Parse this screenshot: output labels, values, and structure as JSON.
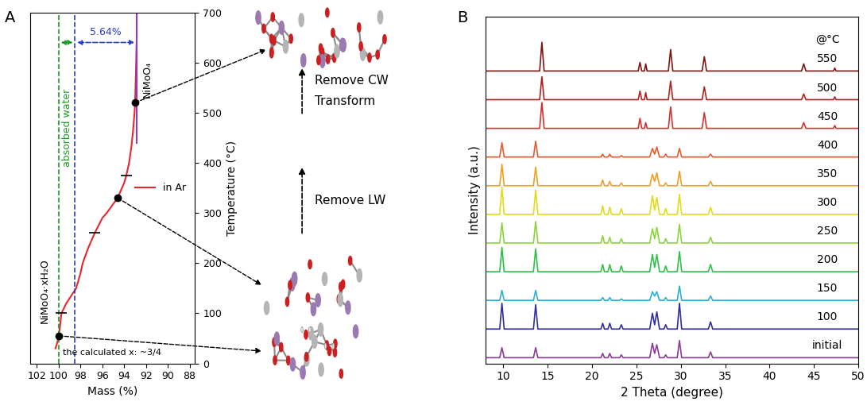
{
  "chart_data": [
    {
      "type": "line",
      "panel": "A",
      "x_label": "Mass (%)",
      "y_label": "Temperature (°C)",
      "xlim": [
        102.6,
        87.5
      ],
      "xticks": [
        102,
        100,
        98,
        96,
        94,
        92,
        90,
        88
      ],
      "ylim": [
        0,
        700
      ],
      "yticks": [
        0,
        100,
        200,
        300,
        400,
        500,
        600,
        700
      ],
      "legend": "center right",
      "series": [
        {
          "name": "in Ar",
          "color": "#e8262b",
          "x": [
            100.3,
            100.15,
            100.0,
            99.9,
            99.75,
            99.3,
            98.4,
            98.0,
            97.8,
            97.3,
            96.7,
            96.0,
            95.6,
            94.6,
            94.0,
            93.8,
            93.55,
            93.35,
            93.2,
            93.05,
            93.0,
            92.95,
            92.9,
            92.85,
            92.85
          ],
          "values": [
            30,
            40,
            55,
            70,
            100,
            120,
            150,
            180,
            200,
            230,
            260,
            290,
            300,
            330,
            360,
            375,
            400,
            430,
            460,
            500,
            520,
            560,
            600,
            650,
            700
          ]
        }
      ],
      "reference_lines": [
        {
          "x": 100,
          "color": "#1a9a2a",
          "line_style": "dashed"
        },
        {
          "x": 98.5,
          "color": "#2a3ad0",
          "line_style": "dashed"
        },
        {
          "x": 92.85,
          "from": 440,
          "to": 700,
          "color": "#8a3ac8",
          "line_style": "solid"
        }
      ],
      "span_arrows": [
        {
          "from": 100,
          "to": 98.5,
          "y": 640,
          "color": "#1a9a2a",
          "text": "absorbed water"
        },
        {
          "from": 98.5,
          "to": 92.85,
          "y": 640,
          "color": "#2a3ad0",
          "text": "5.64%"
        }
      ],
      "points": [
        {
          "x": 100.0,
          "y": 55,
          "label": "NiMoO₄·xH₂O"
        },
        {
          "x": 94.6,
          "y": 330
        },
        {
          "x": 93.0,
          "y": 520,
          "label": "NiMoO₄"
        }
      ],
      "step_marks": [
        [
          99.75,
          100
        ],
        [
          96.7,
          260
        ],
        [
          93.8,
          375
        ]
      ],
      "note": "the calculated x: ~3/4"
    },
    {
      "type": "line",
      "panel": "B",
      "x_label": "2 Theta (degree)",
      "y_label": "Intensity (a.u.)",
      "xlim": [
        8,
        50
      ],
      "xticks": [
        10,
        15,
        20,
        25,
        30,
        35,
        40,
        45,
        50
      ],
      "ylim": [
        -0.2,
        11.9
      ],
      "tick_labels": "x",
      "series_title": "@°C",
      "series": [
        {
          "name": "initial",
          "color": "#8b3a96",
          "x": [
            8,
            9.6,
            9.85,
            10.1,
            13.4,
            13.65,
            13.9,
            21.0,
            21.2,
            21.4,
            21.8,
            22.0,
            22.2,
            23.1,
            23.3,
            23.5,
            26.5,
            26.8,
            27.05,
            27.3,
            27.6,
            28.1,
            28.3,
            28.5,
            29.6,
            29.85,
            30.1,
            33.1,
            33.35,
            33.6,
            50
          ],
          "values": [
            0,
            0,
            0.35,
            0,
            0,
            0.35,
            0,
            0,
            0.15,
            0,
            0,
            0.15,
            0,
            0,
            0.1,
            0,
            0,
            0.5,
            0.15,
            0.45,
            0,
            0,
            0.1,
            0,
            0,
            0.6,
            0,
            0,
            0.2,
            0,
            0
          ]
        },
        {
          "name": "100",
          "color": "#2e2e9e",
          "x": [
            8,
            9.6,
            9.85,
            10.1,
            13.4,
            13.65,
            13.9,
            21.0,
            21.2,
            21.4,
            21.8,
            22.0,
            22.2,
            23.1,
            23.3,
            23.5,
            26.5,
            26.8,
            27.05,
            27.3,
            27.6,
            28.1,
            28.3,
            28.5,
            29.6,
            29.85,
            30.1,
            33.1,
            33.35,
            33.6,
            50
          ],
          "values": [
            1,
            1,
            1.9,
            1,
            1,
            1.85,
            1,
            1,
            1.2,
            1,
            1,
            1.2,
            1,
            1,
            1.15,
            1,
            1,
            1.55,
            1.15,
            1.6,
            1,
            1,
            1.15,
            1,
            1,
            1.9,
            1,
            1,
            1.25,
            1,
            1
          ]
        },
        {
          "name": "150",
          "color": "#2ab0d8",
          "x": [
            8,
            9.6,
            9.85,
            10.1,
            13.4,
            13.65,
            13.9,
            21.0,
            21.2,
            21.4,
            21.8,
            22.0,
            22.2,
            23.1,
            23.3,
            23.5,
            26.5,
            26.8,
            27.05,
            27.3,
            27.6,
            28.1,
            28.3,
            28.5,
            29.6,
            29.85,
            30.1,
            33.1,
            33.35,
            33.6,
            50
          ],
          "values": [
            2,
            2,
            2.35,
            2,
            2,
            2.35,
            2,
            2,
            2.1,
            2,
            2,
            2.1,
            2,
            2,
            2.05,
            2,
            2,
            2.3,
            2.15,
            2.3,
            2,
            2,
            2.1,
            2,
            2,
            2.5,
            2,
            2,
            2.15,
            2,
            2
          ]
        },
        {
          "name": "200",
          "color": "#2fc04a",
          "x": [
            8,
            9.6,
            9.85,
            10.1,
            13.4,
            13.65,
            13.9,
            21.0,
            21.2,
            21.4,
            21.8,
            22.0,
            22.2,
            23.1,
            23.3,
            23.5,
            26.5,
            26.8,
            27.05,
            27.3,
            27.6,
            28.1,
            28.3,
            28.5,
            29.6,
            29.85,
            30.1,
            33.1,
            33.35,
            33.6,
            50
          ],
          "values": [
            3,
            3,
            3.85,
            3,
            3,
            3.8,
            3,
            3,
            3.25,
            3,
            3,
            3.25,
            3,
            3,
            3.2,
            3,
            3,
            3.6,
            3.15,
            3.6,
            3,
            3,
            3.2,
            3,
            3,
            3.7,
            3,
            3,
            3.25,
            3,
            3
          ]
        },
        {
          "name": "250",
          "color": "#8cd43a",
          "x": [
            8,
            9.6,
            9.85,
            10.1,
            13.4,
            13.65,
            13.9,
            21.0,
            21.2,
            21.4,
            21.8,
            22.0,
            22.2,
            23.1,
            23.3,
            23.5,
            26.5,
            26.8,
            27.05,
            27.3,
            27.6,
            28.1,
            28.3,
            28.5,
            29.6,
            29.85,
            30.1,
            33.1,
            33.35,
            33.6,
            50
          ],
          "values": [
            4,
            4,
            4.7,
            4,
            4,
            4.75,
            4,
            4,
            4.25,
            4,
            4,
            4.2,
            4,
            4,
            4.15,
            4,
            4,
            4.5,
            4.15,
            4.55,
            4,
            4,
            4.15,
            4,
            4,
            4.65,
            4,
            4,
            4.2,
            4,
            4
          ]
        },
        {
          "name": "300",
          "color": "#e0dc1a",
          "x": [
            8,
            9.6,
            9.85,
            10.1,
            13.4,
            13.65,
            13.9,
            21.0,
            21.2,
            21.4,
            21.8,
            22.0,
            22.2,
            23.1,
            23.3,
            23.5,
            26.5,
            26.8,
            27.05,
            27.3,
            27.6,
            28.1,
            28.3,
            28.5,
            29.6,
            29.85,
            30.1,
            33.1,
            33.35,
            33.6,
            50
          ],
          "values": [
            5,
            5,
            5.95,
            5,
            5,
            5.85,
            5,
            5,
            5.3,
            5,
            5,
            5.25,
            5,
            5,
            5.2,
            5,
            5,
            5.65,
            5.15,
            5.6,
            5,
            5,
            5.2,
            5,
            5,
            5.7,
            5,
            5,
            5.25,
            5,
            5
          ]
        },
        {
          "name": "350",
          "color": "#f0a020",
          "x": [
            8,
            9.6,
            9.85,
            10.1,
            13.4,
            13.65,
            13.9,
            21.0,
            21.2,
            21.4,
            21.8,
            22.0,
            22.2,
            23.1,
            23.3,
            23.5,
            26.5,
            26.8,
            27.05,
            27.3,
            27.6,
            28.1,
            28.3,
            28.5,
            29.6,
            29.85,
            30.1,
            33.1,
            33.35,
            33.6,
            50
          ],
          "values": [
            6,
            6,
            6.75,
            6,
            6,
            6.65,
            6,
            6,
            6.2,
            6,
            6,
            6.15,
            6,
            6,
            6.1,
            6,
            6,
            6.4,
            6.15,
            6.45,
            6,
            6,
            6.1,
            6,
            6,
            6.5,
            6,
            6,
            6.15,
            6,
            6
          ]
        },
        {
          "name": "400",
          "color": "#e65a30",
          "x": [
            8,
            9.6,
            9.85,
            10.1,
            13.4,
            13.65,
            13.9,
            21.0,
            21.2,
            21.4,
            21.8,
            22.0,
            22.2,
            23.1,
            23.3,
            23.5,
            26.5,
            26.8,
            27.05,
            27.3,
            27.6,
            28.1,
            28.3,
            28.5,
            29.6,
            29.85,
            30.1,
            33.1,
            33.35,
            33.6,
            50
          ],
          "values": [
            7,
            7,
            7.5,
            7,
            7,
            7.55,
            7,
            7,
            7.1,
            7,
            7,
            7.1,
            7,
            7,
            7.05,
            7,
            7,
            7.3,
            7.1,
            7.35,
            7,
            7,
            7.1,
            7,
            7,
            7.3,
            7,
            7,
            7.1,
            7,
            7
          ]
        },
        {
          "name": "450",
          "color": "#d23232",
          "x": [
            8,
            14.1,
            14.35,
            14.6,
            25.2,
            25.4,
            25.6,
            25.9,
            26.05,
            26.2,
            28.6,
            28.85,
            29.1,
            32.4,
            32.65,
            32.9,
            43.6,
            43.85,
            44.1,
            47.2,
            47.35,
            47.5,
            50
          ],
          "values": [
            8,
            8,
            8.9,
            8,
            8,
            8.35,
            8,
            8,
            8.2,
            8,
            8,
            8.75,
            8,
            8,
            8.55,
            8,
            8,
            8.2,
            8,
            8,
            8.1,
            8,
            8
          ]
        },
        {
          "name": "500",
          "color": "#b02222",
          "x": [
            8,
            14.1,
            14.35,
            14.6,
            25.2,
            25.4,
            25.6,
            25.9,
            26.05,
            26.2,
            28.6,
            28.85,
            29.1,
            32.4,
            32.65,
            32.9,
            43.6,
            43.85,
            44.1,
            47.2,
            47.35,
            47.5,
            50
          ],
          "values": [
            9,
            9,
            9.8,
            9,
            9,
            9.3,
            9,
            9,
            9.25,
            9,
            9,
            9.65,
            9,
            9,
            9.45,
            9,
            9,
            9.2,
            9,
            9,
            9.1,
            9,
            9
          ]
        },
        {
          "name": "550",
          "color": "#7e1414",
          "x": [
            8,
            14.1,
            14.35,
            14.6,
            25.2,
            25.4,
            25.6,
            25.9,
            26.05,
            26.2,
            28.6,
            28.85,
            29.1,
            32.4,
            32.65,
            32.9,
            43.6,
            43.85,
            44.1,
            47.2,
            47.35,
            47.5,
            50
          ],
          "values": [
            10,
            10,
            11.0,
            10,
            10,
            10.3,
            10,
            10,
            10.25,
            10,
            10,
            10.75,
            10,
            10,
            10.5,
            10,
            10,
            10.25,
            10,
            10,
            10.1,
            10,
            10
          ]
        }
      ]
    }
  ],
  "diagram": {
    "steps": [
      {
        "labels": [
          "Remove LW"
        ]
      },
      {
        "labels": [
          "Remove CW",
          "Transform"
        ]
      }
    ]
  }
}
